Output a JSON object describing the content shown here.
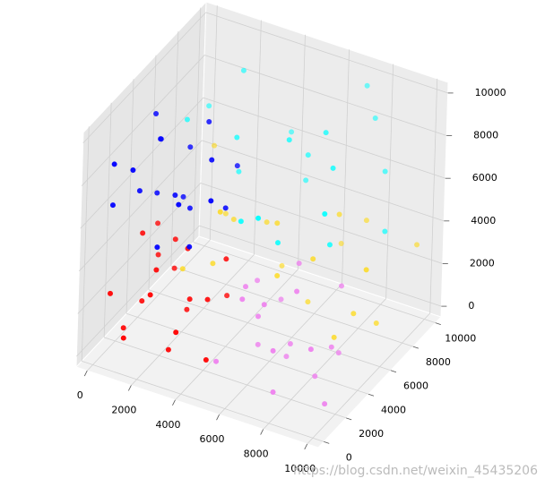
{
  "chart_data": {
    "type": "scatter3d",
    "xlim": [
      -500,
      10500
    ],
    "ylim": [
      -500,
      10500
    ],
    "zlim": [
      -500,
      10500
    ],
    "xticks": [
      0,
      2000,
      4000,
      6000,
      8000,
      10000
    ],
    "yticks": [
      0,
      2000,
      4000,
      6000,
      8000,
      10000
    ],
    "zticks": [
      0,
      2000,
      4000,
      6000,
      8000,
      10000
    ],
    "grid": true,
    "watermark": "https://blog.csdn.net/weixin_45435206",
    "series": [
      {
        "color": "#ff0000",
        "x": [
          300,
          1200,
          2000,
          800,
          3500,
          2600,
          4200,
          1500,
          600,
          3000,
          4700,
          2200,
          1800,
          3800,
          900,
          4400,
          2800,
          400,
          3300,
          1100
        ],
        "y": [
          800,
          300,
          1500,
          2600,
          400,
          3200,
          1800,
          4200,
          1500,
          2300,
          800,
          600,
          3600,
          4400,
          3900,
          3000,
          1200,
          4800,
          2000,
          2100
        ],
        "z": [
          2500,
          1000,
          3800,
          4500,
          2000,
          1200,
          3000,
          2200,
          600,
          4700,
          900,
          3200,
          4000,
          1600,
          2800,
          4300,
          500,
          3600,
          2600,
          1700
        ]
      },
      {
        "color": "#0000ff",
        "x": [
          200,
          1300,
          2500,
          800,
          3600,
          2000,
          4400,
          1600,
          500,
          3100,
          4800,
          2300,
          1000,
          3900,
          2700,
          600,
          4100,
          1900,
          3400,
          1200
        ],
        "y": [
          1000,
          500,
          2000,
          3500,
          1200,
          4300,
          2800,
          2400,
          4600,
          3700,
          600,
          900,
          1800,
          4800,
          3000,
          200,
          2000,
          4000,
          500,
          3000
        ],
        "z": [
          6500,
          8800,
          7200,
          9600,
          5600,
          8000,
          6800,
          9300,
          7700,
          9900,
          8500,
          5300,
          7000,
          7500,
          6100,
          9000,
          9400,
          5800,
          7900,
          6300
        ]
      },
      {
        "color": "#00ffff",
        "x": [
          5500,
          7000,
          8800,
          6200,
          9500,
          1000,
          2500,
          4000,
          6000,
          8000,
          9800,
          7500,
          3000,
          500,
          5200,
          9000,
          6800,
          8500,
          3500,
          7200
        ],
        "y": [
          2000,
          500,
          3500,
          4800,
          1500,
          6000,
          8000,
          9500,
          7000,
          9000,
          6500,
          5500,
          6800,
          9000,
          8500,
          8000,
          2800,
          4200,
          5500,
          9800
        ],
        "z": [
          7000,
          8500,
          6200,
          9500,
          9000,
          8000,
          9700,
          6500,
          7500,
          8800,
          5500,
          9900,
          5800,
          6800,
          5200,
          7200,
          6000,
          9300,
          8300,
          9600
        ]
      },
      {
        "color": "#ee82ee",
        "x": [
          5300,
          6500,
          8000,
          9500,
          7200,
          5800,
          8800,
          6200,
          9900,
          7500,
          5100,
          8300,
          6900,
          9200,
          5700,
          7800,
          9600,
          6000,
          8600,
          7000
        ],
        "y": [
          500,
          1800,
          300,
          2500,
          4000,
          3300,
          4700,
          900,
          1200,
          2800,
          4500,
          1600,
          3700,
          3800,
          2200,
          600,
          400,
          4900,
          2900,
          1300
        ],
        "z": [
          1200,
          3000,
          800,
          2200,
          4500,
          600,
          3600,
          4200,
          400,
          1500,
          2700,
          4900,
          200,
          1100,
          3900,
          2500,
          3300,
          1900,
          300,
          4000
        ]
      },
      {
        "color": "#ffd700",
        "x": [
          1000,
          2500,
          4000,
          5500,
          7000,
          8500,
          9800,
          3000,
          6200,
          8000,
          1500,
          4800,
          9200,
          7600,
          2200,
          5800,
          9600,
          3600,
          6800,
          500
        ],
        "y": [
          6000,
          7500,
          9000,
          5500,
          8000,
          6500,
          9500,
          5200,
          9900,
          5800,
          8800,
          6800,
          7200,
          9300,
          6300,
          7800,
          5300,
          8300,
          6100,
          9600
        ],
        "z": [
          1000,
          3000,
          500,
          2500,
          4500,
          1200,
          3200,
          4800,
          1800,
          300,
          2200,
          4000,
          600,
          3700,
          1500,
          100,
          4300,
          2800,
          3400,
          4600
        ]
      }
    ]
  }
}
